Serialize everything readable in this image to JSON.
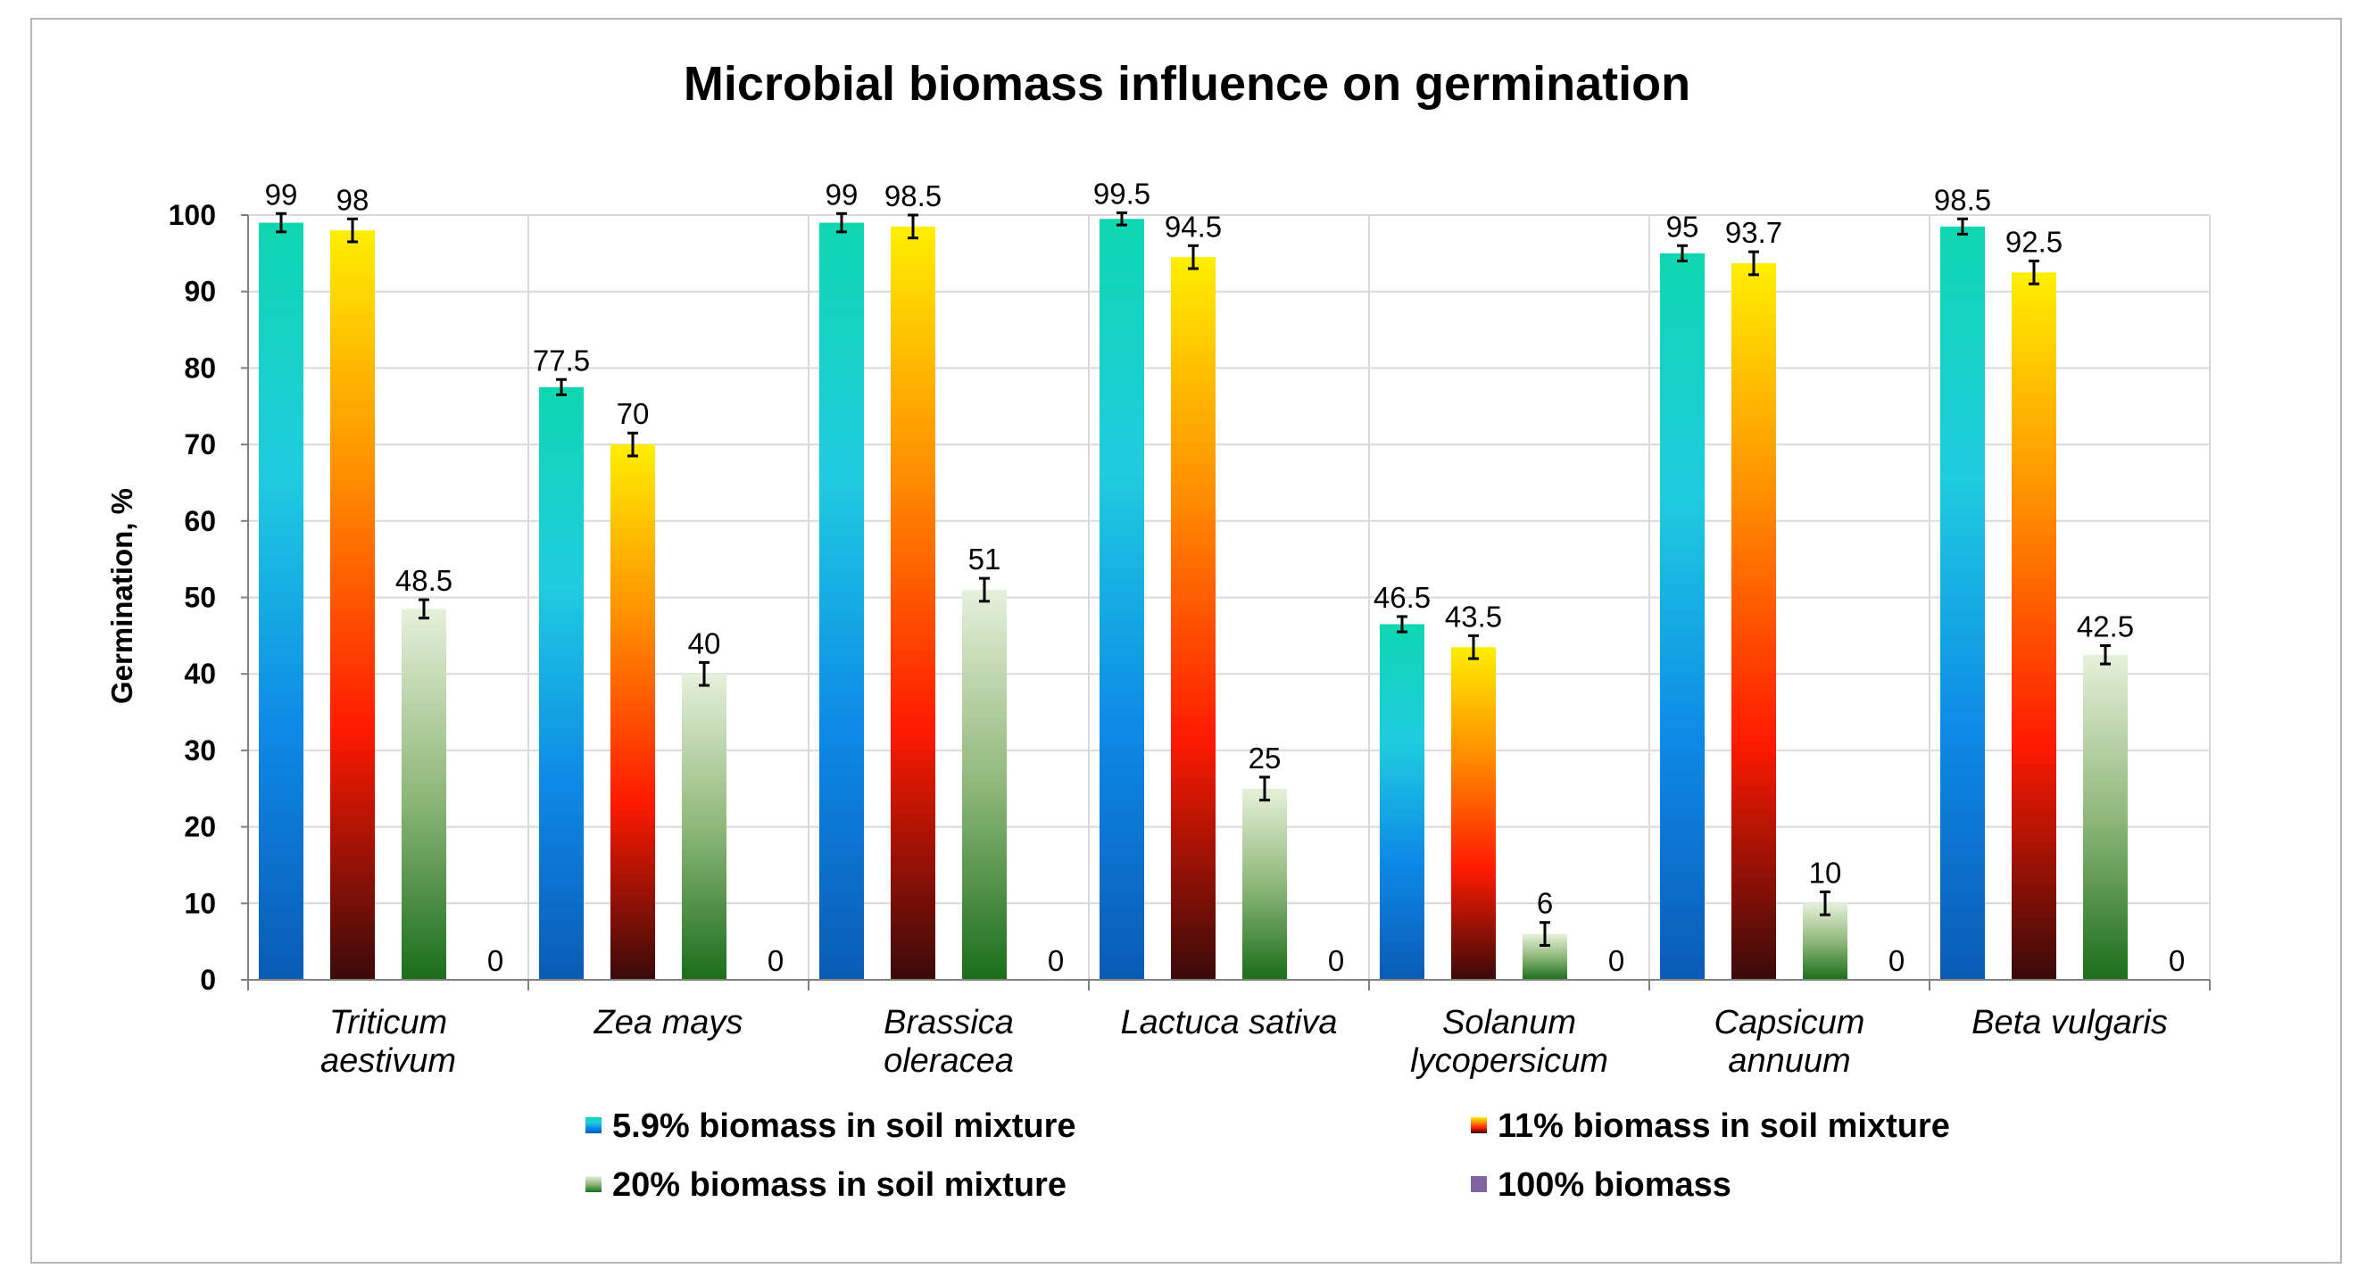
{
  "chart_data": {
    "type": "bar",
    "title": "Microbial biomass influence on germination",
    "xlabel": "",
    "ylabel": "Germination,  %",
    "ylim": [
      0,
      100
    ],
    "yticks": [
      0,
      10,
      20,
      30,
      40,
      50,
      60,
      70,
      80,
      90,
      100
    ],
    "grid": true,
    "legend_position": "bottom",
    "categories": [
      [
        "Triticum",
        "aestivum"
      ],
      [
        "Zea mays"
      ],
      [
        "Brassica",
        "oleracea"
      ],
      [
        "Lactuca sativa"
      ],
      [
        "Solanum",
        "lycopersicum"
      ],
      [
        "Capsicum",
        "annuum"
      ],
      [
        "Beta vulgaris"
      ]
    ],
    "series": [
      {
        "name": "5.9% biomass in soil mixture",
        "values": [
          99,
          77.5,
          99,
          99.5,
          46.5,
          95,
          98.5
        ],
        "labels": [
          "99",
          "77.5",
          "99",
          "99.5",
          "46.5",
          "95",
          "98.5"
        ],
        "error": [
          1.2,
          1.0,
          1.2,
          0.8,
          1.0,
          1.0,
          1.0
        ],
        "colors": [
          "#0a5bb5",
          "#0d8ae6",
          "#1fcce0",
          "#0fd6b0"
        ]
      },
      {
        "name": "11% biomass in soil mixture",
        "values": [
          98,
          70,
          98.5,
          94.5,
          43.5,
          93.7,
          92.5
        ],
        "labels": [
          "98",
          "70",
          "98.5",
          "94.5",
          "43.5",
          "93.7",
          "92.5"
        ],
        "error": [
          1.5,
          1.5,
          1.5,
          1.5,
          1.5,
          1.5,
          1.5
        ],
        "colors": [
          "#3a0a0a",
          "#ff1a00",
          "#ff8c00",
          "#ffee00"
        ]
      },
      {
        "name": "20% biomass in soil mixture",
        "values": [
          48.5,
          40,
          51,
          25,
          6,
          10,
          42.5
        ],
        "labels": [
          "48.5",
          "40",
          "51",
          "25",
          "6",
          "10",
          "42.5"
        ],
        "error": [
          1.2,
          1.5,
          1.5,
          1.5,
          1.5,
          1.5,
          1.2
        ],
        "colors": [
          "#1a6e1a",
          "#8fb87a",
          "#e6f0da"
        ]
      },
      {
        "name": "100% biomass",
        "values": [
          0,
          0,
          0,
          0,
          0,
          0,
          0
        ],
        "labels": [
          "0",
          "0",
          "0",
          "0",
          "0",
          "0",
          "0"
        ],
        "error": [
          0,
          0,
          0,
          0,
          0,
          0,
          0
        ],
        "colors": [
          "#8064a2"
        ]
      }
    ]
  }
}
